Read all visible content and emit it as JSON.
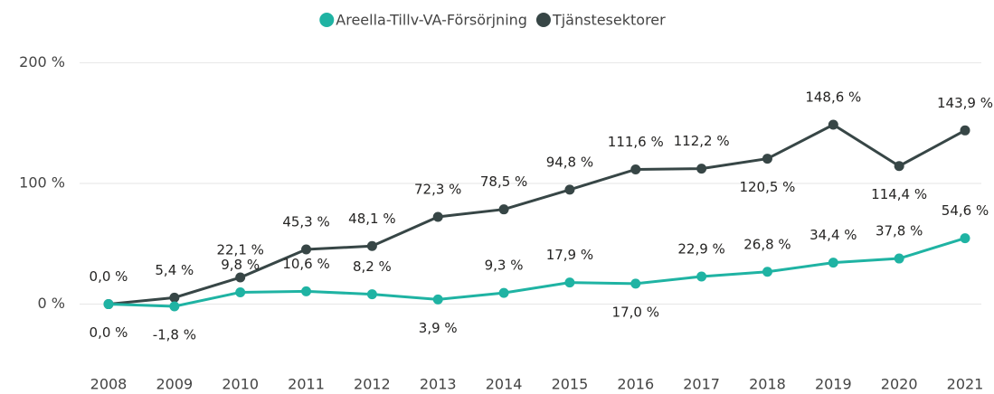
{
  "chart_data": {
    "type": "line",
    "categories": [
      "2008",
      "2009",
      "2010",
      "2011",
      "2012",
      "2013",
      "2014",
      "2015",
      "2016",
      "2017",
      "2018",
      "2019",
      "2020",
      "2021"
    ],
    "series": [
      {
        "name": "Areella-Tillv-VA-Försörjning",
        "color": "#1fb3a3",
        "values": [
          0.0,
          -1.8,
          9.8,
          10.6,
          8.2,
          3.9,
          9.3,
          17.9,
          17.0,
          22.9,
          26.8,
          34.4,
          37.8,
          54.6
        ],
        "value_labels": [
          "0,0 %",
          "-1,8 %",
          "9,8 %",
          "10,6 %",
          "8,2 %",
          "3,9 %",
          "9,3 %",
          "17,9 %",
          "17,0 %",
          "22,9 %",
          "26,8 %",
          "34,4 %",
          "37,8 %",
          "54,6 %"
        ]
      },
      {
        "name": "Tjänstesektorer",
        "color": "#374646",
        "values": [
          0.0,
          5.4,
          22.1,
          45.3,
          48.1,
          72.3,
          78.5,
          94.8,
          111.6,
          112.2,
          120.5,
          148.6,
          114.4,
          143.9
        ],
        "value_labels": [
          "0,0 %",
          "5,4 %",
          "22,1 %",
          "45,3 %",
          "48,1 %",
          "72,3 %",
          "78,5 %",
          "94,8 %",
          "111,6 %",
          "112,2 %",
          "120,5 %",
          "148,6 %",
          "114,4 %",
          "143,9 %"
        ]
      }
    ],
    "ylim": [
      -40,
      210
    ],
    "yticks": [
      {
        "value": 0,
        "label": "0 %"
      },
      {
        "value": 100,
        "label": "100 %"
      },
      {
        "value": 200,
        "label": "200 %"
      }
    ],
    "grid": true,
    "legend": "top"
  }
}
